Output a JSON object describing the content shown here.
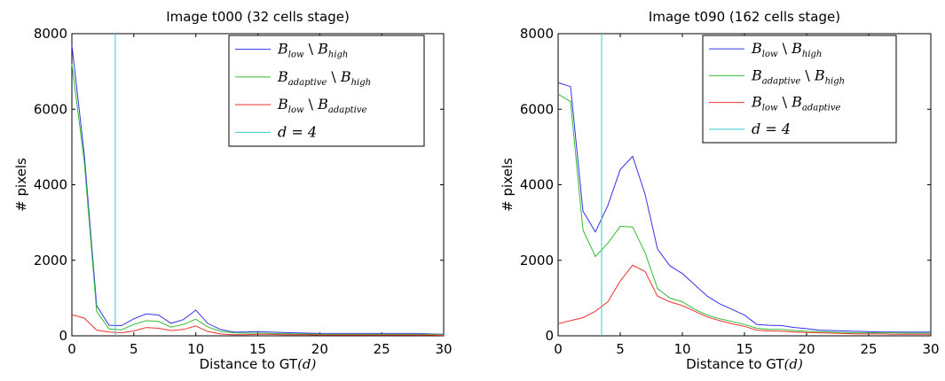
{
  "chart_data": [
    {
      "type": "line",
      "title": "Image t000 (32 cells stage)",
      "xlabel": "Distance to GT",
      "xlabel_math": "(d)",
      "ylabel": "# pixels",
      "xlim": [
        0,
        30
      ],
      "ylim": [
        0,
        8000
      ],
      "xticks": [
        0,
        5,
        10,
        15,
        20,
        25,
        30
      ],
      "yticks": [
        0,
        2000,
        4000,
        6000,
        8000
      ],
      "grid": false,
      "legend_position": "top-right",
      "x": [
        0,
        1,
        2,
        3,
        4,
        5,
        6,
        7,
        8,
        9,
        10,
        11,
        12,
        13,
        14,
        15,
        16,
        17,
        18,
        19,
        20,
        21,
        22,
        23,
        24,
        25,
        26,
        27,
        28,
        29,
        30
      ],
      "series": [
        {
          "name": "B_low \\ B_high",
          "legend": {
            "main1": "B",
            "sub1": "low",
            "sep": " \\ ",
            "main2": "B",
            "sub2": "high"
          },
          "color": "#3333ee",
          "values": [
            7700,
            4800,
            800,
            280,
            270,
            450,
            580,
            550,
            330,
            430,
            680,
            320,
            170,
            100,
            100,
            110,
            100,
            90,
            80,
            70,
            60,
            60,
            60,
            60,
            60,
            60,
            60,
            60,
            60,
            50,
            40
          ]
        },
        {
          "name": "B_adaptive \\ B_high",
          "legend": {
            "main1": "B",
            "sub1": "adaptive",
            "sep": " \\ ",
            "main2": "B",
            "sub2": "high"
          },
          "color": "#33bb33",
          "values": [
            7200,
            4600,
            650,
            180,
            160,
            300,
            400,
            380,
            230,
            300,
            440,
            230,
            120,
            80,
            70,
            70,
            60,
            60,
            50,
            50,
            40,
            40,
            40,
            40,
            40,
            40,
            40,
            40,
            40,
            40,
            30
          ]
        },
        {
          "name": "B_low \\ B_adaptive",
          "legend": {
            "main1": "B",
            "sub1": "low",
            "sep": " \\ ",
            "main2": "B",
            "sub2": "adaptive"
          },
          "color": "#ee3333",
          "values": [
            560,
            470,
            150,
            100,
            80,
            130,
            220,
            200,
            140,
            170,
            260,
            110,
            50,
            30,
            30,
            40,
            40,
            30,
            30,
            30,
            20,
            20,
            20,
            20,
            20,
            20,
            20,
            20,
            20,
            20,
            10
          ]
        }
      ],
      "vline": {
        "name": "d = 4",
        "legend": {
          "main1": "d",
          "sep": " = ",
          "main2": "4"
        },
        "x": 3.5,
        "color": "#33cccc"
      }
    },
    {
      "type": "line",
      "title": "Image t090 (162 cells stage)",
      "xlabel": "Distance to GT",
      "xlabel_math": "(d)",
      "ylabel": "# pixels",
      "xlim": [
        0,
        30
      ],
      "ylim": [
        0,
        8000
      ],
      "xticks": [
        0,
        5,
        10,
        15,
        20,
        25,
        30
      ],
      "yticks": [
        0,
        2000,
        4000,
        6000,
        8000
      ],
      "grid": false,
      "legend_position": "top-right",
      "x": [
        0,
        1,
        2,
        3,
        4,
        5,
        6,
        7,
        8,
        9,
        10,
        11,
        12,
        13,
        14,
        15,
        16,
        17,
        18,
        19,
        20,
        21,
        22,
        23,
        24,
        25,
        26,
        27,
        28,
        29,
        30
      ],
      "series": [
        {
          "name": "B_low \\ B_high",
          "legend": {
            "main1": "B",
            "sub1": "low",
            "sep": " \\ ",
            "main2": "B",
            "sub2": "high"
          },
          "color": "#3333ee",
          "values": [
            6700,
            6600,
            3300,
            2750,
            3450,
            4400,
            4750,
            3750,
            2300,
            1850,
            1650,
            1350,
            1050,
            850,
            700,
            550,
            300,
            280,
            270,
            220,
            190,
            150,
            140,
            130,
            120,
            110,
            100,
            100,
            100,
            100,
            100
          ]
        },
        {
          "name": "B_adaptive \\ B_high",
          "legend": {
            "main1": "B",
            "sub1": "adaptive",
            "sep": " \\ ",
            "main2": "B",
            "sub2": "high"
          },
          "color": "#33bb33",
          "values": [
            6400,
            6200,
            2800,
            2100,
            2450,
            2900,
            2880,
            2200,
            1250,
            1000,
            900,
            700,
            550,
            450,
            380,
            300,
            200,
            170,
            170,
            140,
            120,
            110,
            100,
            90,
            80,
            80,
            80,
            80,
            70,
            70,
            70
          ]
        },
        {
          "name": "B_low \\ B_adaptive",
          "legend": {
            "main1": "B",
            "sub1": "low",
            "sep": " \\ ",
            "main2": "B",
            "sub2": "adaptive"
          },
          "color": "#ee3333",
          "values": [
            320,
            400,
            480,
            650,
            900,
            1450,
            1870,
            1700,
            1050,
            900,
            800,
            650,
            500,
            400,
            320,
            250,
            150,
            130,
            120,
            100,
            90,
            80,
            70,
            60,
            50,
            50,
            50,
            40,
            40,
            40,
            40
          ]
        }
      ],
      "vline": {
        "name": "d = 4",
        "legend": {
          "main1": "d",
          "sep": " = ",
          "main2": "4"
        },
        "x": 3.5,
        "color": "#33cccc"
      }
    }
  ]
}
